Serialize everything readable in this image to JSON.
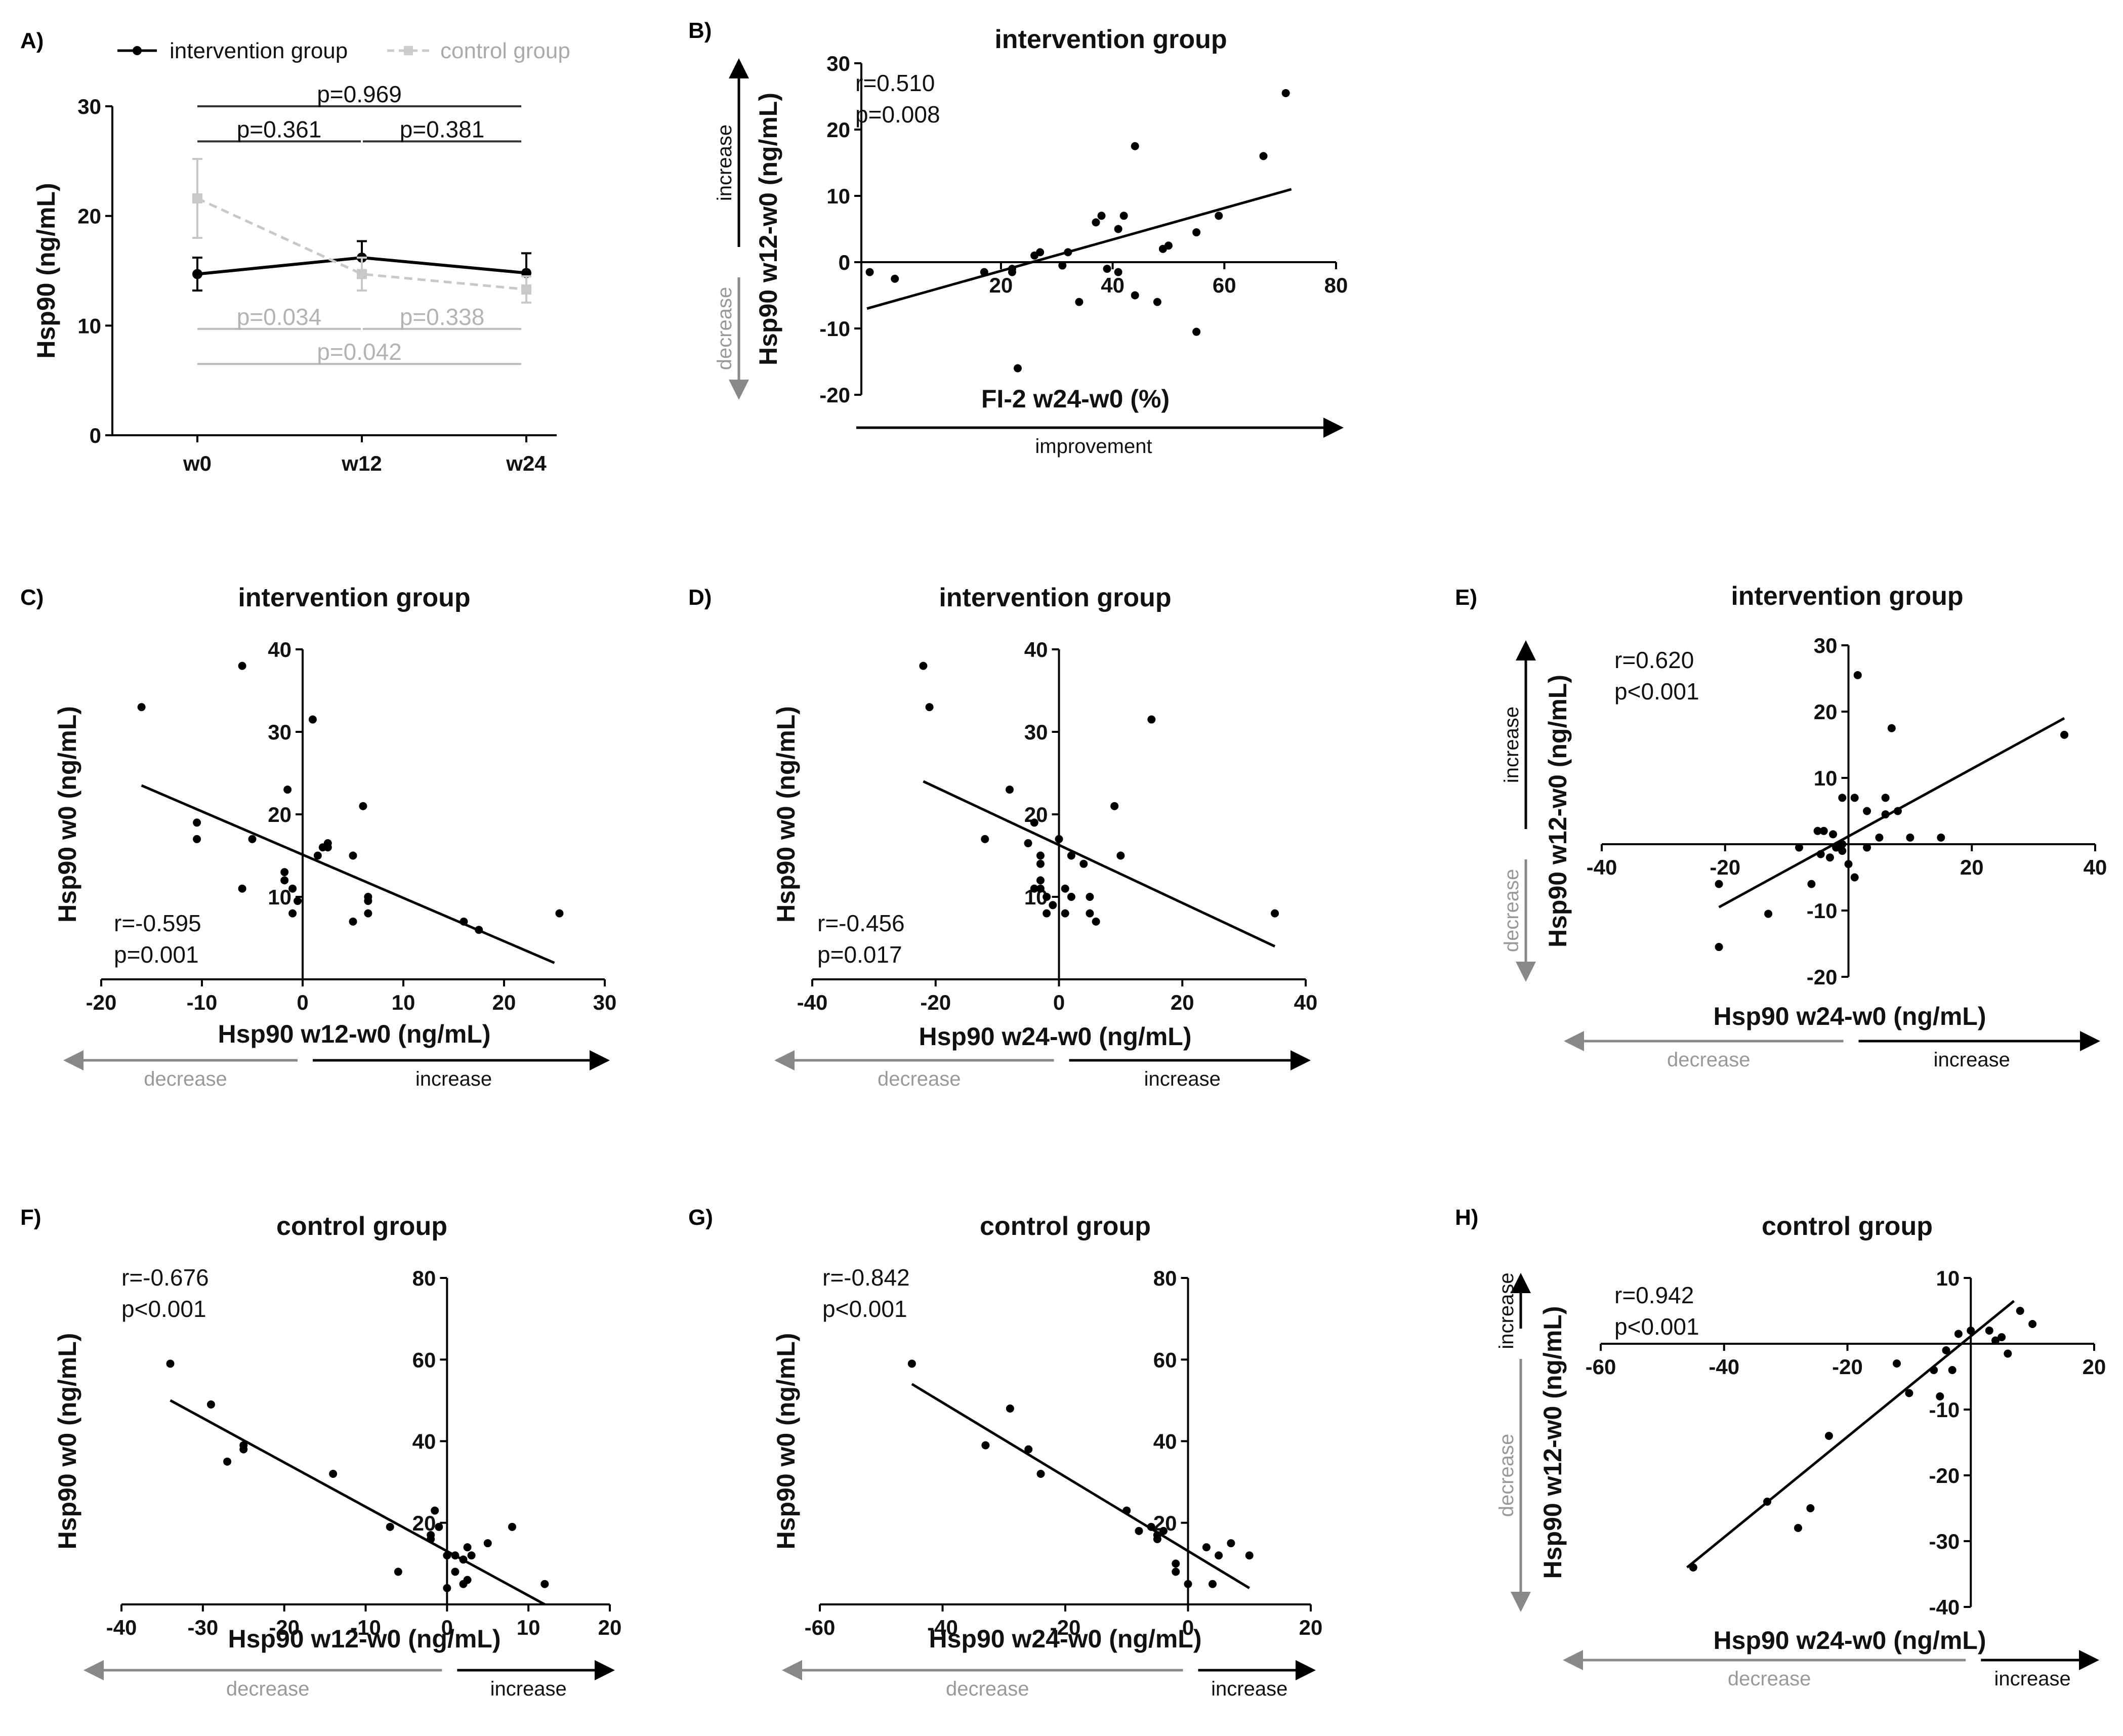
{
  "chart_data": [
    {
      "id": "A",
      "panel_label": "A)",
      "type": "line",
      "categories": [
        "w0",
        "w12",
        "w24"
      ],
      "ylabel": "Hsp90 (ng/mL)",
      "ylim": [
        0,
        30
      ],
      "yticks": [
        "0",
        "10",
        "20",
        "30"
      ],
      "series": [
        {
          "name": "intervention group",
          "values": [
            14.7,
            16.2,
            14.8
          ],
          "err": [
            1.5,
            1.5,
            1.8
          ],
          "color": "#000000"
        },
        {
          "name": "control group",
          "values": [
            21.6,
            14.7,
            13.3
          ],
          "err": [
            3.6,
            1.5,
            1.2
          ],
          "color": "#c8c8c8"
        }
      ],
      "annotations": [
        {
          "text": "p=0.969",
          "from": 0,
          "to": 2,
          "y": 30.0,
          "group": "intervention"
        },
        {
          "text": "p=0.361",
          "from": 0,
          "to": 1,
          "y": 26.8,
          "group": "intervention"
        },
        {
          "text": "p=0.381",
          "from": 1,
          "to": 2,
          "y": 26.8,
          "group": "intervention"
        },
        {
          "text": "p=0.034",
          "from": 0,
          "to": 1,
          "y": 9.7,
          "group": "control"
        },
        {
          "text": "p=0.338",
          "from": 1,
          "to": 2,
          "y": 9.7,
          "group": "control"
        },
        {
          "text": "p=0.042",
          "from": 0,
          "to": 2,
          "y": 6.5,
          "group": "control"
        }
      ]
    },
    {
      "id": "B",
      "panel_label": "B)",
      "type": "scatter",
      "title": "intervention group",
      "xlabel": "FI-2 w24-w0 (%)",
      "ylabel": "Hsp90 w12-w0 (ng/mL)",
      "xlim": [
        -5,
        80
      ],
      "ylim": [
        -20,
        30
      ],
      "xticks": [
        "20",
        "40",
        "60",
        "80"
      ],
      "yticks": [
        "-20",
        "-10",
        "0",
        "10",
        "20",
        "30"
      ],
      "stats": [
        "r=0.510",
        "p=0.008"
      ],
      "x_arrow": {
        "right": "improvement"
      },
      "y_arrow": {
        "up": "increase",
        "down": "decrease"
      },
      "fit": {
        "x1": -4,
        "y1": -7,
        "x2": 72,
        "y2": 11
      },
      "points": [
        [
          -3.5,
          -1.5
        ],
        [
          1,
          -2.5
        ],
        [
          17,
          -1.5
        ],
        [
          22,
          -1.5
        ],
        [
          22,
          -1
        ],
        [
          26,
          1
        ],
        [
          27,
          1.5
        ],
        [
          23,
          -16
        ],
        [
          31,
          -0.5
        ],
        [
          32,
          1.5
        ],
        [
          34,
          -6
        ],
        [
          37,
          6
        ],
        [
          38,
          7
        ],
        [
          39,
          -1
        ],
        [
          41,
          -1.5
        ],
        [
          41,
          5
        ],
        [
          42,
          7
        ],
        [
          44,
          17.5
        ],
        [
          44,
          -5
        ],
        [
          48,
          -6
        ],
        [
          49,
          2
        ],
        [
          50,
          2.5
        ],
        [
          55,
          -10.5
        ],
        [
          55,
          4.5
        ],
        [
          59,
          7
        ],
        [
          67,
          16
        ],
        [
          71,
          25.5
        ]
      ]
    },
    {
      "id": "C",
      "panel_label": "C)",
      "type": "scatter",
      "title": "intervention group",
      "xlabel": "Hsp90 w12-w0 (ng/mL)",
      "ylabel": "Hsp90 w0 (ng/mL)",
      "xlim": [
        -20,
        30
      ],
      "ylim": [
        0,
        40
      ],
      "xticks": [
        "-20",
        "-10",
        "0",
        "10",
        "20",
        "30"
      ],
      "yticks": [
        "10",
        "20",
        "30",
        "40"
      ],
      "stats": [
        "r=-0.595",
        "p=0.001"
      ],
      "x_arrow": {
        "left": "decrease",
        "right": "increase"
      },
      "fit": {
        "x1": -16,
        "y1": 23.5,
        "x2": 25,
        "y2": 2
      },
      "points": [
        [
          -16,
          33
        ],
        [
          -6,
          38
        ],
        [
          -6,
          11
        ],
        [
          -10.5,
          19
        ],
        [
          -10.5,
          17
        ],
        [
          -5,
          17
        ],
        [
          -1.5,
          23
        ],
        [
          -1.8,
          13
        ],
        [
          -1.8,
          12
        ],
        [
          -1,
          11
        ],
        [
          -1,
          8
        ],
        [
          -0.5,
          9.5
        ],
        [
          1,
          31.5
        ],
        [
          1.5,
          15
        ],
        [
          2,
          16
        ],
        [
          2.5,
          16.5
        ],
        [
          2.5,
          16
        ],
        [
          5,
          15
        ],
        [
          5,
          7
        ],
        [
          6,
          21
        ],
        [
          6.5,
          9.5
        ],
        [
          6.5,
          10
        ],
        [
          6.5,
          8
        ],
        [
          16,
          7
        ],
        [
          17.5,
          6
        ],
        [
          25.5,
          8
        ]
      ]
    },
    {
      "id": "D",
      "panel_label": "D)",
      "type": "scatter",
      "title": "intervention group",
      "xlabel": "Hsp90 w24-w0 (ng/mL)",
      "ylabel": "Hsp90 w0 (ng/mL)",
      "xlim": [
        -40,
        40
      ],
      "ylim": [
        0,
        40
      ],
      "xticks": [
        "-40",
        "-20",
        "0",
        "20",
        "40"
      ],
      "yticks": [
        "10",
        "20",
        "30",
        "40"
      ],
      "stats": [
        "r=-0.456",
        "p=0.017"
      ],
      "x_arrow": {
        "left": "decrease",
        "right": "increase"
      },
      "fit": {
        "x1": -22,
        "y1": 24,
        "x2": 35,
        "y2": 4
      },
      "points": [
        [
          -22,
          38
        ],
        [
          -21,
          33
        ],
        [
          -8,
          23
        ],
        [
          -12,
          17
        ],
        [
          -5,
          16.5
        ],
        [
          -4,
          19
        ],
        [
          -3,
          15
        ],
        [
          -3,
          14
        ],
        [
          -4,
          11
        ],
        [
          -3,
          12
        ],
        [
          -3,
          11
        ],
        [
          -2,
          10
        ],
        [
          -2,
          8
        ],
        [
          -1,
          9
        ],
        [
          0,
          17
        ],
        [
          1,
          11
        ],
        [
          1,
          8
        ],
        [
          2,
          15
        ],
        [
          2,
          10
        ],
        [
          4,
          14
        ],
        [
          5,
          10
        ],
        [
          5,
          8
        ],
        [
          6,
          7
        ],
        [
          9,
          21
        ],
        [
          10,
          15
        ],
        [
          15,
          31.5
        ],
        [
          35,
          8
        ]
      ]
    },
    {
      "id": "E",
      "panel_label": "E)",
      "type": "scatter",
      "title": "intervention group",
      "xlabel": "Hsp90 w24-w0 (ng/mL)",
      "ylabel": "Hsp90 w12-w0 (ng/mL)",
      "xlim": [
        -40,
        40
      ],
      "ylim": [
        -20,
        30
      ],
      "xticks": [
        "-40",
        "-20",
        "20",
        "40"
      ],
      "yticks": [
        "-20",
        "-10",
        "10",
        "20",
        "30"
      ],
      "stats": [
        "r=0.620",
        "p<0.001"
      ],
      "x_arrow": {
        "left": "decrease",
        "right": "increase"
      },
      "y_arrow": {
        "up": "increase",
        "down": "decrease"
      },
      "fit": {
        "x1": -21,
        "y1": -9.5,
        "x2": 35,
        "y2": 19
      },
      "points": [
        [
          -21,
          -6
        ],
        [
          -21,
          -15.5
        ],
        [
          -13,
          -10.5
        ],
        [
          -8,
          -0.5
        ],
        [
          -6,
          -6
        ],
        [
          -5,
          2
        ],
        [
          -4.5,
          -1.5
        ],
        [
          -4,
          2
        ],
        [
          -3,
          -2
        ],
        [
          -2,
          -0.5
        ],
        [
          -2.5,
          1.5
        ],
        [
          -1,
          7
        ],
        [
          -1,
          0
        ],
        [
          -1,
          -1
        ],
        [
          0,
          -3
        ],
        [
          1,
          -5
        ],
        [
          1,
          7
        ],
        [
          1.5,
          25.5
        ],
        [
          3,
          -0.5
        ],
        [
          3,
          5
        ],
        [
          5,
          1
        ],
        [
          6,
          4.5
        ],
        [
          6,
          7
        ],
        [
          7,
          17.5
        ],
        [
          8,
          5
        ],
        [
          10,
          1
        ],
        [
          15,
          1
        ],
        [
          35,
          16.5
        ]
      ]
    },
    {
      "id": "F",
      "panel_label": "F)",
      "type": "scatter",
      "title": "control group",
      "xlabel": "Hsp90 w12-w0 (ng/mL)",
      "ylabel": "Hsp90 w0 (ng/mL)",
      "xlim": [
        -40,
        20
      ],
      "ylim": [
        0,
        80
      ],
      "xticks": [
        "-40",
        "-30",
        "-20",
        "-10",
        "0",
        "10",
        "20"
      ],
      "yticks": [
        "20",
        "40",
        "60",
        "80"
      ],
      "stats": [
        "r=-0.676",
        "p<0.001"
      ],
      "x_arrow": {
        "left": "decrease",
        "right": "increase"
      },
      "fit": {
        "x1": -34,
        "y1": 50,
        "x2": 12,
        "y2": 0
      },
      "points": [
        [
          -34,
          59
        ],
        [
          -29,
          49
        ],
        [
          -27,
          35
        ],
        [
          -25,
          38
        ],
        [
          -25,
          39
        ],
        [
          -14,
          32
        ],
        [
          -7,
          19
        ],
        [
          -6,
          8
        ],
        [
          -2,
          17
        ],
        [
          -2,
          16
        ],
        [
          -1.5,
          23
        ],
        [
          -1,
          19
        ],
        [
          0,
          12
        ],
        [
          0,
          4
        ],
        [
          1,
          8
        ],
        [
          1,
          12
        ],
        [
          2,
          5
        ],
        [
          2,
          11
        ],
        [
          2.5,
          14
        ],
        [
          2.5,
          6
        ],
        [
          3,
          12
        ],
        [
          5,
          15
        ],
        [
          8,
          19
        ],
        [
          12,
          5
        ]
      ]
    },
    {
      "id": "G",
      "panel_label": "G)",
      "type": "scatter",
      "title": "control group",
      "xlabel": "Hsp90 w24-w0 (ng/mL)",
      "ylabel": "Hsp90 w0 (ng/mL)",
      "xlim": [
        -60,
        20
      ],
      "ylim": [
        0,
        80
      ],
      "xticks": [
        "-60",
        "-40",
        "-20",
        "0",
        "20"
      ],
      "yticks": [
        "20",
        "40",
        "60",
        "80"
      ],
      "stats": [
        "r=-0.842",
        "p<0.001"
      ],
      "x_arrow": {
        "left": "decrease",
        "right": "increase"
      },
      "fit": {
        "x1": -45,
        "y1": 54,
        "x2": 10,
        "y2": 4
      },
      "points": [
        [
          -45,
          59
        ],
        [
          -33,
          39
        ],
        [
          -29,
          48
        ],
        [
          -26,
          38
        ],
        [
          -24,
          32
        ],
        [
          -10,
          23
        ],
        [
          -8,
          18
        ],
        [
          -6,
          19
        ],
        [
          -5,
          17
        ],
        [
          -5,
          16
        ],
        [
          -4,
          18
        ],
        [
          -2,
          10
        ],
        [
          -2,
          8
        ],
        [
          0,
          5
        ],
        [
          3,
          14
        ],
        [
          4,
          5
        ],
        [
          5,
          12
        ],
        [
          7,
          15
        ],
        [
          10,
          12
        ]
      ]
    },
    {
      "id": "H",
      "panel_label": "H)",
      "type": "scatter",
      "title": "control group",
      "xlabel": "Hsp90 w24-w0 (ng/mL)",
      "ylabel": "Hsp90 w12-w0 (ng/mL)",
      "xlim": [
        -60,
        20
      ],
      "ylim": [
        -40,
        10
      ],
      "xticks": [
        "-60",
        "-40",
        "-20",
        "20"
      ],
      "yticks": [
        "-40",
        "-30",
        "-20",
        "-10",
        "10"
      ],
      "stats": [
        "r=0.942",
        "p<0.001"
      ],
      "x_arrow": {
        "left": "decrease",
        "right": "increase"
      },
      "y_arrow": {
        "up": "increase",
        "down": "decrease"
      },
      "fit": {
        "x1": -46,
        "y1": -34,
        "x2": 7,
        "y2": 6.5
      },
      "points": [
        [
          -45,
          -34
        ],
        [
          -33,
          -24
        ],
        [
          -28,
          -28
        ],
        [
          -26,
          -25
        ],
        [
          -23,
          -14
        ],
        [
          -12,
          -3
        ],
        [
          -10,
          -7.5
        ],
        [
          -6,
          -4
        ],
        [
          -5,
          -8
        ],
        [
          -4,
          -1
        ],
        [
          -3,
          -4
        ],
        [
          -2,
          1.5
        ],
        [
          0,
          2
        ],
        [
          3,
          2
        ],
        [
          4,
          0.5
        ],
        [
          5,
          1
        ],
        [
          6,
          -1.5
        ],
        [
          8,
          5
        ],
        [
          10,
          3
        ]
      ]
    }
  ]
}
